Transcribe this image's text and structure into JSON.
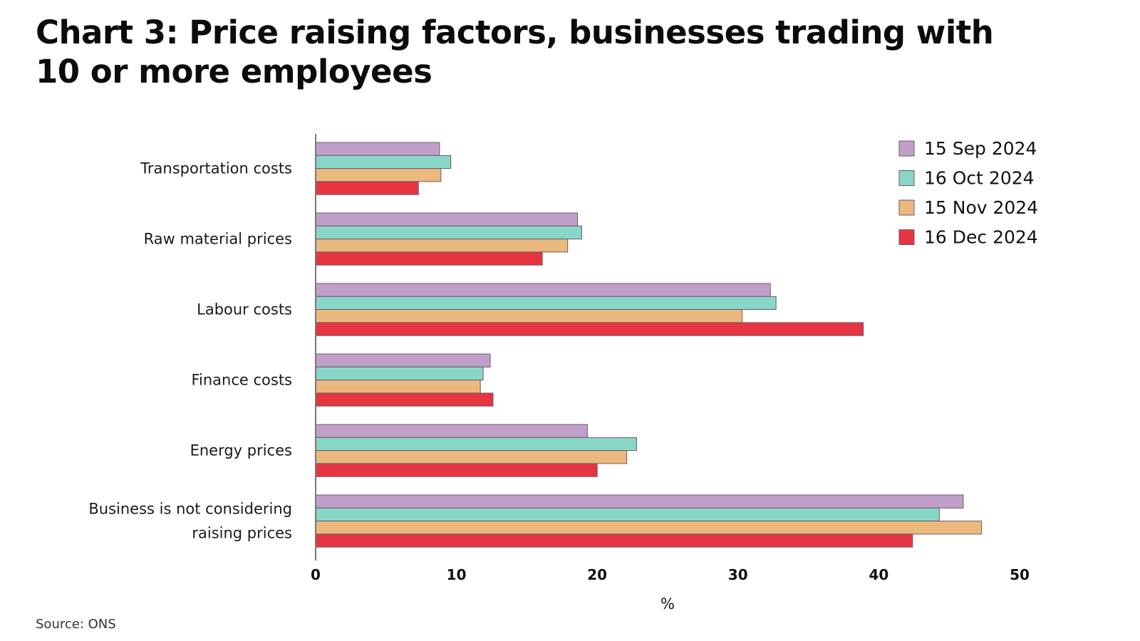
{
  "title": "Chart 3: Price raising factors, businesses trading with 10 or more employees",
  "title_lines": [
    "Chart 3: Price raising factors, businesses trading with",
    "10 or more employees"
  ],
  "source": "Source: ONS",
  "chart_data": {
    "type": "bar",
    "orientation": "horizontal",
    "title": "Chart 3: Price raising factors, businesses trading with 10 or more employees",
    "xlabel": "%",
    "ylabel": "",
    "xlim": [
      0,
      50
    ],
    "xticks": [
      0,
      10,
      20,
      30,
      40,
      50
    ],
    "grid": false,
    "legend_position": "top-right",
    "categories": [
      [
        "Transportation costs"
      ],
      [
        "Raw material prices"
      ],
      [
        "Labour costs"
      ],
      [
        "Finance costs"
      ],
      [
        "Energy prices"
      ],
      [
        "Business is not considering",
        "raising prices"
      ]
    ],
    "series": [
      {
        "name": "15 Sep 2024",
        "color": "#c19fc9",
        "values": [
          8.8,
          18.6,
          32.3,
          12.4,
          19.3,
          46.0
        ]
      },
      {
        "name": "16 Oct 2024",
        "color": "#88d6c7",
        "values": [
          9.6,
          18.9,
          32.7,
          11.9,
          22.8,
          44.3
        ]
      },
      {
        "name": "15 Nov 2024",
        "color": "#ebb97e",
        "values": [
          8.9,
          17.9,
          30.3,
          11.7,
          22.1,
          47.3
        ]
      },
      {
        "name": "16 Dec 2024",
        "color": "#e63541",
        "values": [
          7.3,
          16.1,
          38.9,
          12.6,
          20.0,
          42.4
        ]
      }
    ]
  }
}
